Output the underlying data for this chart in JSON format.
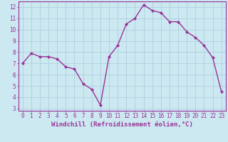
{
  "x": [
    0,
    1,
    2,
    3,
    4,
    5,
    6,
    7,
    8,
    9,
    10,
    11,
    12,
    13,
    14,
    15,
    16,
    17,
    18,
    19,
    20,
    21,
    22,
    23
  ],
  "y": [
    7.0,
    7.9,
    7.6,
    7.6,
    7.4,
    6.7,
    6.5,
    5.2,
    4.7,
    3.3,
    7.6,
    8.6,
    10.5,
    11.0,
    12.2,
    11.7,
    11.5,
    10.7,
    10.7,
    9.8,
    9.3,
    8.6,
    7.5,
    4.5
  ],
  "line_color": "#993399",
  "marker": "D",
  "marker_size": 2,
  "bg_color": "#cce8f0",
  "grid_color": "#aaccdd",
  "xlabel": "Windchill (Refroidissement éolien,°C)",
  "xlabel_color": "#993399",
  "tick_color": "#993399",
  "xlim": [
    -0.5,
    23.5
  ],
  "ylim": [
    2.8,
    12.5
  ],
  "yticks": [
    3,
    4,
    5,
    6,
    7,
    8,
    9,
    10,
    11,
    12
  ],
  "xticks": [
    0,
    1,
    2,
    3,
    4,
    5,
    6,
    7,
    8,
    9,
    10,
    11,
    12,
    13,
    14,
    15,
    16,
    17,
    18,
    19,
    20,
    21,
    22,
    23
  ],
  "xtick_labels": [
    "0",
    "1",
    "2",
    "3",
    "4",
    "5",
    "6",
    "7",
    "8",
    "9",
    "10",
    "11",
    "12",
    "13",
    "14",
    "15",
    "16",
    "17",
    "18",
    "19",
    "20",
    "21",
    "22",
    "23"
  ],
  "ytick_labels": [
    "3",
    "4",
    "5",
    "6",
    "7",
    "8",
    "9",
    "10",
    "11",
    "12"
  ],
  "font_size": 5.5,
  "xlabel_fontsize": 6.5,
  "linewidth": 1.0
}
